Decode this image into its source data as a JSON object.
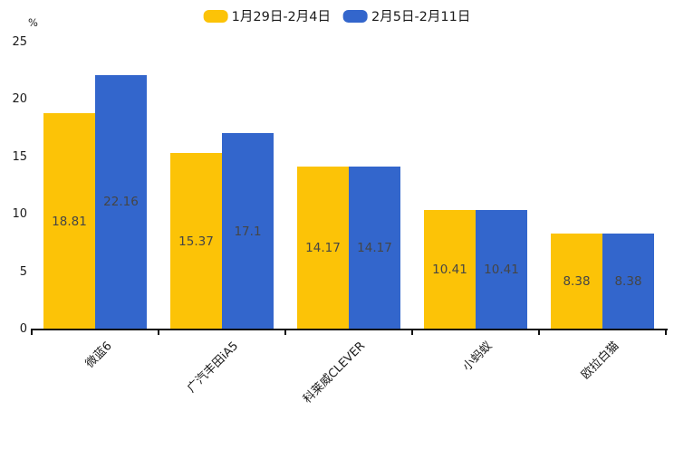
{
  "chart_data": {
    "type": "bar",
    "title": "",
    "unit_label": "%",
    "categories": [
      "微蓝6",
      "广汽丰田iA5",
      "科莱威CLEVER",
      "小蚂蚁",
      "欧拉白猫"
    ],
    "series": [
      {
        "name": "1月29日-2月4日",
        "color": "#FCC307",
        "values": [
          18.81,
          15.37,
          14.17,
          10.41,
          8.38
        ]
      },
      {
        "name": "2月5日-2月11日",
        "color": "#3366CC",
        "values": [
          22.16,
          17.1,
          14.17,
          10.41,
          8.38
        ]
      }
    ],
    "ylim": [
      0,
      25
    ],
    "yticks": [
      0,
      5,
      10,
      15,
      20,
      25
    ],
    "legend_position": "top-center",
    "grid": false,
    "value_labels": "inside-center",
    "value_label_color": "#454545",
    "axis_color": "#111111",
    "category_label_rotation_deg": 45
  }
}
